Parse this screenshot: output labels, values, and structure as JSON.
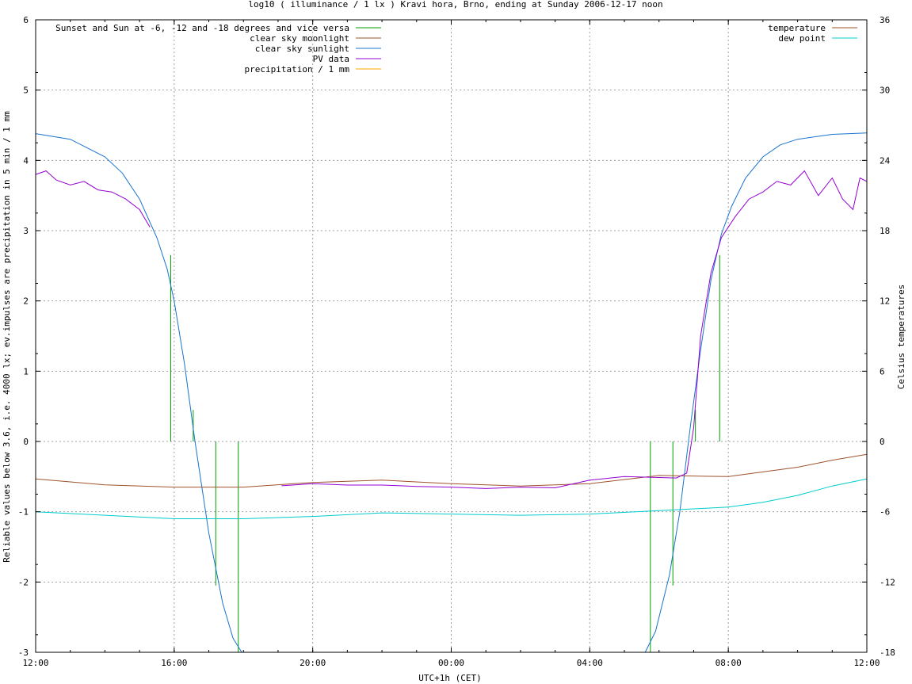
{
  "chart_data": {
    "type": "line",
    "title": "log10 ( illuminance / 1 lx ) Kravi hora, Brno, ending at Sunday 2006-12-17 noon",
    "xlabel": "UTC+1h (CET)",
    "ylabel": "Reliable values below 3.6, i.e. 4000 lx; ev.impulses are precipitation in 5 min / 1 mm",
    "y2label": "Celsius temperatures",
    "x_ticks": [
      "12:00",
      "16:00",
      "20:00",
      "00:00",
      "04:00",
      "08:00",
      "12:00"
    ],
    "x_range_hours": [
      0,
      24
    ],
    "ylim": [
      -3,
      6
    ],
    "y_ticks": [
      "-3",
      "-2",
      "-1",
      "0",
      "1",
      "2",
      "3",
      "4",
      "5",
      "6"
    ],
    "y2lim": [
      -18,
      36
    ],
    "y2_ticks": [
      "-18",
      "-12",
      "-6",
      "0",
      "6",
      "12",
      "18",
      "24",
      "30",
      "36"
    ],
    "grid": true,
    "legend_left": [
      {
        "name": "Sunset and Sun at -6, -12 and -18 degrees and vice versa",
        "color": "#00a000"
      },
      {
        "name": "clear sky moonlight",
        "color": "#a0522d"
      },
      {
        "name": "clear sky sunlight",
        "color": "#1874cd"
      },
      {
        "name": "PV data",
        "color": "#9400d3"
      },
      {
        "name": "precipitation / 1 mm",
        "color": "#ffa500"
      }
    ],
    "legend_right": [
      {
        "name": "temperature",
        "color": "#a0522d"
      },
      {
        "name": "dew point",
        "color": "#00cccc"
      }
    ],
    "sun_event_hours": [
      3.9,
      4.55,
      5.2,
      5.85,
      17.75,
      18.4,
      19.05,
      19.75
    ],
    "sun_event_tops": [
      2.65,
      0.45,
      -2.05,
      -3.0,
      -3.0,
      -2.05,
      0.45,
      2.65
    ],
    "clear_sky_sunlight": {
      "hours": [
        0,
        1,
        2,
        2.5,
        3,
        3.5,
        3.8,
        4,
        4.3,
        4.6,
        5,
        5.4,
        5.7,
        5.95,
        17.6,
        17.9,
        18.3,
        18.6,
        18.9,
        19.2,
        19.5,
        19.8,
        20.1,
        20.5,
        21,
        21.5,
        22,
        23,
        24
      ],
      "values": [
        4.38,
        4.3,
        4.05,
        3.82,
        3.45,
        2.9,
        2.45,
        2.0,
        1.1,
        0.0,
        -1.3,
        -2.3,
        -2.8,
        -3.0,
        -3.0,
        -2.7,
        -1.9,
        -1.0,
        0.2,
        1.3,
        2.3,
        2.95,
        3.35,
        3.75,
        4.05,
        4.22,
        4.3,
        4.37,
        4.39
      ]
    },
    "pv_data": {
      "hours": [
        0,
        0.3,
        0.6,
        1.0,
        1.4,
        1.8,
        2.2,
        2.6,
        3.0,
        3.3,
        7.1,
        8,
        9,
        10,
        11,
        12,
        13,
        14,
        15,
        16,
        17,
        18.5,
        18.8,
        19.0,
        19.2,
        19.5,
        19.8,
        20.2,
        20.6,
        21.0,
        21.4,
        21.8,
        22.2,
        22.6,
        23.0,
        23.3,
        23.6,
        23.8,
        24
      ],
      "values": [
        3.8,
        3.85,
        3.72,
        3.65,
        3.7,
        3.58,
        3.55,
        3.45,
        3.3,
        3.05,
        -0.63,
        -0.6,
        -0.62,
        -0.62,
        -0.64,
        -0.65,
        -0.67,
        -0.65,
        -0.66,
        -0.55,
        -0.5,
        -0.52,
        -0.45,
        0.2,
        1.5,
        2.4,
        2.9,
        3.2,
        3.45,
        3.55,
        3.7,
        3.65,
        3.85,
        3.5,
        3.75,
        3.45,
        3.3,
        3.75,
        3.7
      ]
    },
    "temperature": {
      "hours": [
        0,
        2,
        4,
        6,
        8,
        10,
        12,
        14,
        16,
        18,
        20,
        21,
        22,
        23,
        24
      ],
      "values": [
        -3.2,
        -3.7,
        -3.9,
        -3.9,
        -3.5,
        -3.3,
        -3.6,
        -3.8,
        -3.6,
        -2.9,
        -3.0,
        -2.6,
        -2.2,
        -1.6,
        -1.1
      ]
    },
    "dew_point": {
      "hours": [
        0,
        2,
        4,
        6,
        8,
        10,
        12,
        14,
        16,
        18,
        20,
        21,
        22,
        23,
        24
      ],
      "values": [
        -6.0,
        -6.3,
        -6.6,
        -6.6,
        -6.4,
        -6.1,
        -6.2,
        -6.3,
        -6.2,
        -5.9,
        -5.6,
        -5.2,
        -4.6,
        -3.8,
        -3.2
      ]
    }
  }
}
